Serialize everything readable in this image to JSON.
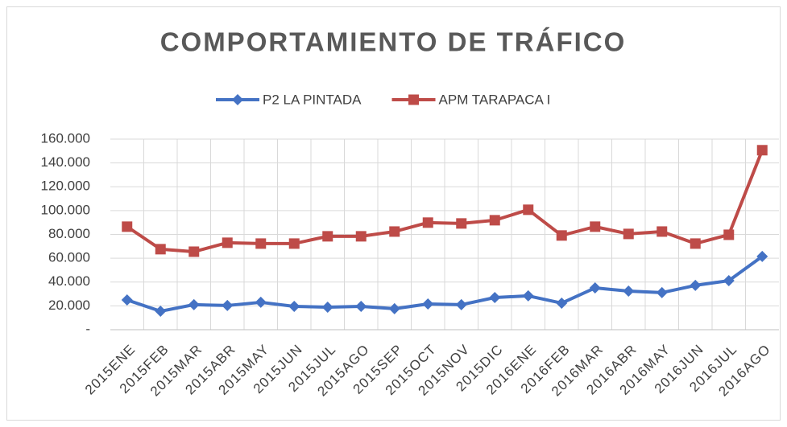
{
  "chart_data": {
    "type": "line",
    "title": "COMPORTAMIENTO DE TRÁFICO",
    "categories": [
      "2015ENE",
      "2015FEB",
      "2015MAR",
      "2015ABR",
      "2015MAY",
      "2015JUN",
      "2015JUL",
      "2015AGO",
      "2015SEP",
      "2015OCT",
      "2015NOV",
      "2015DIC",
      "2016ENE",
      "2016FEB",
      "2016MAR",
      "2016ABR",
      "2016MAY",
      "2016JUN",
      "2016JUL",
      "2016AGO"
    ],
    "series": [
      {
        "name": "P2 LA PINTADA",
        "color": "#4472c4",
        "marker": "diamond",
        "values": [
          25000,
          15500,
          21000,
          20300,
          23000,
          19600,
          18900,
          19600,
          17600,
          21600,
          21000,
          27000,
          28400,
          22300,
          35100,
          32400,
          31100,
          37200,
          41200,
          61500
        ]
      },
      {
        "name": "APM TARAPACA I",
        "color": "#be4b48",
        "marker": "square",
        "values": [
          86500,
          67600,
          65500,
          73000,
          72300,
          72300,
          78400,
          78400,
          82400,
          89900,
          89200,
          91900,
          100700,
          79100,
          86500,
          80400,
          82400,
          72300,
          79700,
          150700
        ]
      }
    ],
    "ylim": [
      0,
      160000
    ],
    "yticks": [
      {
        "value": 0,
        "label": "-"
      },
      {
        "value": 20000,
        "label": "20.000"
      },
      {
        "value": 40000,
        "label": "40.000"
      },
      {
        "value": 60000,
        "label": "60.000"
      },
      {
        "value": 80000,
        "label": "80.000"
      },
      {
        "value": 100000,
        "label": "100.000"
      },
      {
        "value": 120000,
        "label": "120.000"
      },
      {
        "value": 140000,
        "label": "140.000"
      },
      {
        "value": 160000,
        "label": "160.000"
      }
    ],
    "grid": true,
    "legend": "top"
  }
}
